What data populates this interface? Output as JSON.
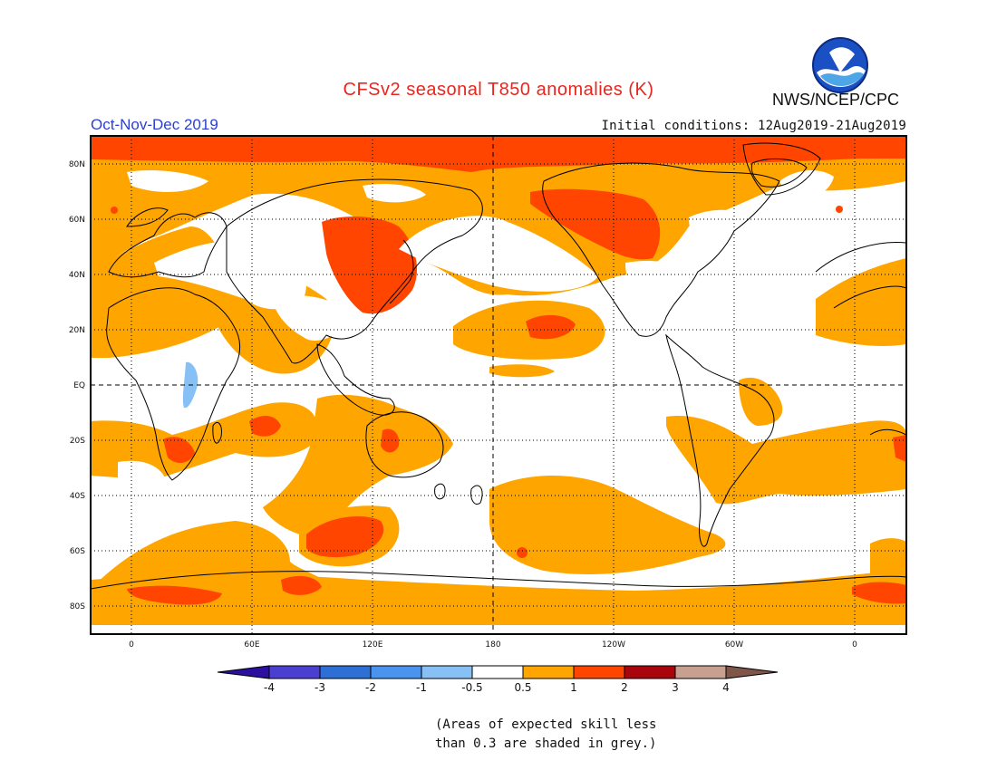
{
  "title": "CFSv2 seasonal T850 anomalies (K)",
  "season": "Oct-Nov-Dec 2019",
  "initial_conditions": "Initial conditions: 12Aug2019-21Aug2019",
  "agency": "NWS/NCEP/CPC",
  "logo_icon": "noaa-logo-icon",
  "map": {
    "lat_labels": [
      "80N",
      "60N",
      "40N",
      "20N",
      "EQ",
      "20S",
      "40S",
      "60S",
      "80S"
    ],
    "lon_labels": [
      "0",
      "60E",
      "120E",
      "180",
      "120W",
      "60W",
      "0"
    ]
  },
  "colorbar": {
    "labels": [
      "-4",
      "-3",
      "-2",
      "-1",
      "-0.5",
      "0.5",
      "1",
      "2",
      "3",
      "4"
    ],
    "colors": [
      "#2a0fa0",
      "#4a3fd0",
      "#2e6fd6",
      "#4a94f0",
      "#86c0f5",
      "#ffffff",
      "#ffa500",
      "#ff4500",
      "#a8060c",
      "#c8a08f",
      "#80554a"
    ]
  },
  "note": {
    "line1": "(Areas of expected skill less",
    "line2": "than 0.3 are shaded in grey.)"
  }
}
